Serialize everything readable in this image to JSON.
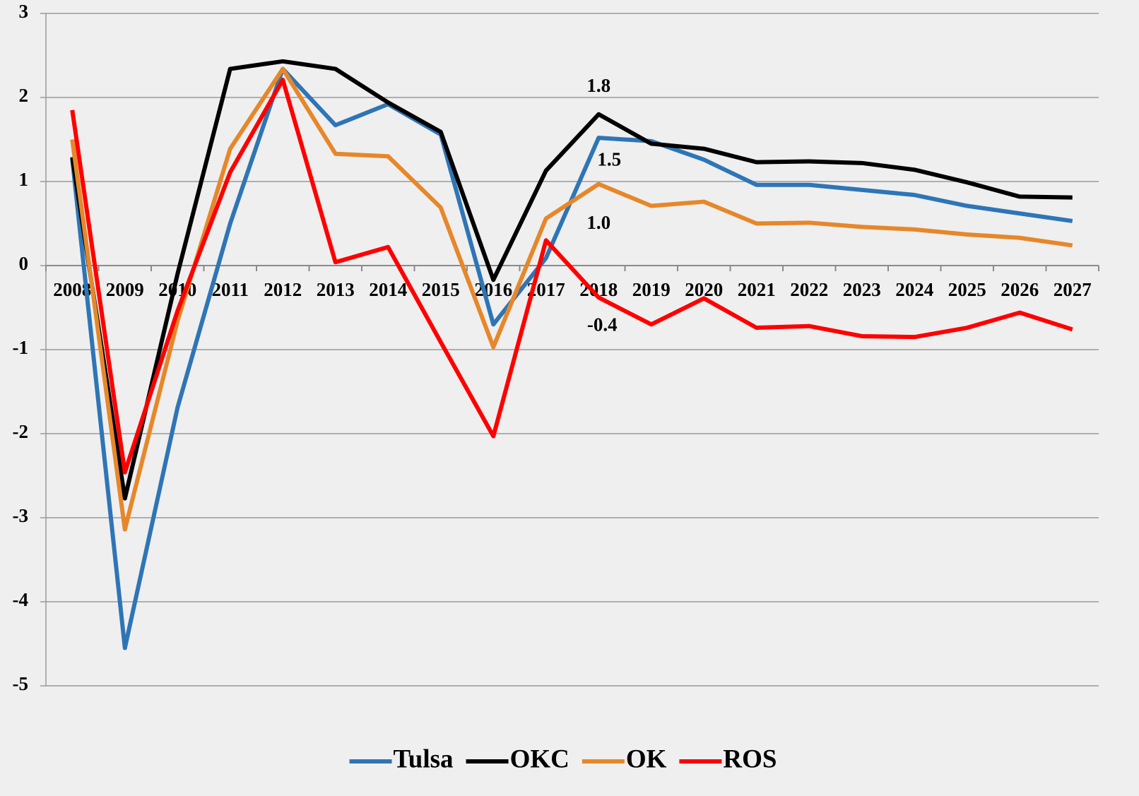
{
  "chart_data": {
    "type": "line",
    "categories": [
      "2008",
      "2009",
      "2010",
      "2011",
      "2012",
      "2013",
      "2014",
      "2015",
      "2016",
      "2017",
      "2018",
      "2019",
      "2020",
      "2021",
      "2022",
      "2023",
      "2024",
      "2025",
      "2026",
      "2027"
    ],
    "series": [
      {
        "name": "Tulsa",
        "color": "#2e75b6",
        "values": [
          1.27,
          -4.55,
          -1.69,
          0.5,
          2.34,
          1.67,
          1.92,
          1.56,
          -0.7,
          0.09,
          1.52,
          1.48,
          1.26,
          0.96,
          0.96,
          0.9,
          0.84,
          0.71,
          0.62,
          0.53
        ],
        "value_labels": [
          null,
          null,
          null,
          null,
          null,
          null,
          null,
          null,
          null,
          null,
          "1.5",
          null,
          null,
          null,
          null,
          null,
          null,
          null,
          null,
          null
        ]
      },
      {
        "name": "OKC",
        "color": "#000000",
        "values": [
          1.29,
          -2.77,
          -0.1,
          2.34,
          2.43,
          2.34,
          1.94,
          1.59,
          -0.17,
          1.13,
          1.8,
          1.45,
          1.39,
          1.23,
          1.24,
          1.22,
          1.14,
          0.99,
          0.82,
          0.81
        ],
        "value_labels": [
          null,
          null,
          null,
          null,
          null,
          null,
          null,
          null,
          null,
          null,
          "1.8",
          null,
          null,
          null,
          null,
          null,
          null,
          null,
          null,
          null
        ]
      },
      {
        "name": "OK",
        "color": "#e6872a",
        "values": [
          1.5,
          -3.14,
          -0.66,
          1.39,
          2.34,
          1.33,
          1.3,
          0.69,
          -0.97,
          0.56,
          0.97,
          0.71,
          0.76,
          0.5,
          0.51,
          0.46,
          0.43,
          0.37,
          0.33,
          0.24
        ],
        "value_labels": [
          null,
          null,
          null,
          null,
          null,
          null,
          null,
          null,
          null,
          null,
          "1.0",
          null,
          null,
          null,
          null,
          null,
          null,
          null,
          null,
          null
        ]
      },
      {
        "name": "ROS",
        "color": "#ff0000",
        "values": [
          1.85,
          -2.46,
          -0.54,
          1.11,
          2.21,
          0.04,
          0.22,
          -0.91,
          -2.03,
          0.3,
          -0.38,
          -0.7,
          -0.39,
          -0.74,
          -0.72,
          -0.84,
          -0.85,
          -0.74,
          -0.56,
          -0.76
        ],
        "value_labels": [
          null,
          null,
          null,
          null,
          null,
          null,
          null,
          null,
          null,
          null,
          "-0.4",
          null,
          null,
          null,
          null,
          null,
          null,
          null,
          null,
          null
        ]
      }
    ],
    "ylim": [
      -5,
      3
    ],
    "yticks": [
      -5,
      -4,
      -3,
      -2,
      -1,
      0,
      1,
      2,
      3
    ],
    "grid": true,
    "legend": "bottom"
  }
}
